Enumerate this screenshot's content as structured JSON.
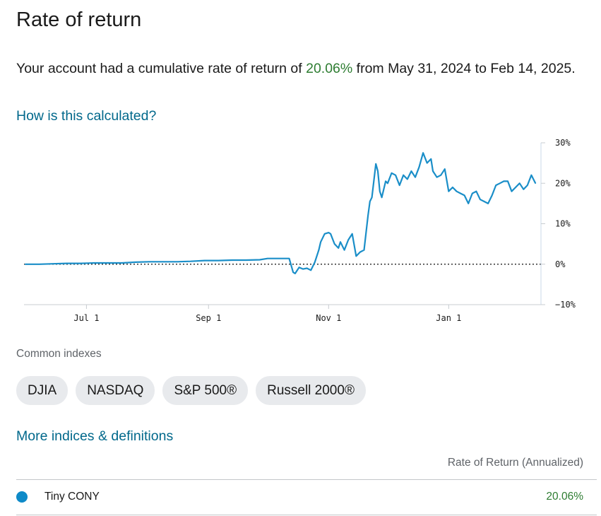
{
  "page": {
    "title": "Rate of return",
    "summary_prefix": "Your account had a cumulative rate of return of ",
    "summary_value": "20.06%",
    "summary_suffix": " from May 31, 2024 to Feb 14, 2025.",
    "how_link": "How is this calculated?"
  },
  "chart_data": {
    "type": "line",
    "xlabel": "",
    "ylabel": "",
    "x_tick_labels": [
      "Jul 1",
      "Sep 1",
      "Nov 1",
      "Jan 1"
    ],
    "x_ticks": [
      "2024-07-01",
      "2024-09-01",
      "2024-11-01",
      "2025-01-01"
    ],
    "xlim": [
      "2024-05-31",
      "2025-02-14"
    ],
    "y_tick_labels": [
      "30%",
      "20%",
      "10%",
      "0%",
      "−10%"
    ],
    "y_ticks": [
      30,
      20,
      10,
      0,
      -10
    ],
    "ylim": [
      -10,
      30
    ],
    "axis_side": "right",
    "zero_line": "dotted",
    "series": [
      {
        "color": "#1a8ec8",
        "points": [
          [
            "2024-05-31",
            0.0
          ],
          [
            "2024-06-07",
            0.0
          ],
          [
            "2024-06-14",
            0.1
          ],
          [
            "2024-06-21",
            0.2
          ],
          [
            "2024-06-28",
            0.2
          ],
          [
            "2024-07-05",
            0.3
          ],
          [
            "2024-07-12",
            0.3
          ],
          [
            "2024-07-19",
            0.3
          ],
          [
            "2024-07-26",
            0.5
          ],
          [
            "2024-08-02",
            0.6
          ],
          [
            "2024-08-09",
            0.6
          ],
          [
            "2024-08-16",
            0.6
          ],
          [
            "2024-08-23",
            0.7
          ],
          [
            "2024-08-30",
            0.9
          ],
          [
            "2024-09-06",
            0.9
          ],
          [
            "2024-09-13",
            1.0
          ],
          [
            "2024-09-20",
            1.0
          ],
          [
            "2024-09-27",
            1.1
          ],
          [
            "2024-10-01",
            1.4
          ],
          [
            "2024-10-08",
            1.4
          ],
          [
            "2024-10-12",
            1.4
          ],
          [
            "2024-10-14",
            -2.0
          ],
          [
            "2024-10-15",
            -2.3
          ],
          [
            "2024-10-17",
            -0.8
          ],
          [
            "2024-10-19",
            -1.2
          ],
          [
            "2024-10-21",
            -1.0
          ],
          [
            "2024-10-23",
            -1.5
          ],
          [
            "2024-10-25",
            0.5
          ],
          [
            "2024-10-27",
            3.5
          ],
          [
            "2024-10-28",
            5.5
          ],
          [
            "2024-10-30",
            7.5
          ],
          [
            "2024-11-01",
            7.8
          ],
          [
            "2024-11-02",
            7.5
          ],
          [
            "2024-11-04",
            5.0
          ],
          [
            "2024-11-06",
            4.0
          ],
          [
            "2024-11-07",
            5.5
          ],
          [
            "2024-11-09",
            3.5
          ],
          [
            "2024-11-11",
            6.0
          ],
          [
            "2024-11-13",
            7.5
          ],
          [
            "2024-11-15",
            2.0
          ],
          [
            "2024-11-17",
            3.0
          ],
          [
            "2024-11-19",
            3.5
          ],
          [
            "2024-11-21",
            12.0
          ],
          [
            "2024-11-22",
            15.5
          ],
          [
            "2024-11-23",
            16.5
          ],
          [
            "2024-11-25",
            24.8
          ],
          [
            "2024-11-26",
            23.0
          ],
          [
            "2024-11-27",
            18.0
          ],
          [
            "2024-11-28",
            16.5
          ],
          [
            "2024-11-30",
            20.5
          ],
          [
            "2024-12-01",
            20.0
          ],
          [
            "2024-12-03",
            22.5
          ],
          [
            "2024-12-05",
            22.0
          ],
          [
            "2024-12-07",
            19.5
          ],
          [
            "2024-12-09",
            22.0
          ],
          [
            "2024-12-11",
            21.0
          ],
          [
            "2024-12-13",
            23.0
          ],
          [
            "2024-12-15",
            21.5
          ],
          [
            "2024-12-17",
            24.0
          ],
          [
            "2024-12-19",
            27.5
          ],
          [
            "2024-12-21",
            25.0
          ],
          [
            "2024-12-23",
            26.0
          ],
          [
            "2024-12-24",
            23.0
          ],
          [
            "2024-12-26",
            21.5
          ],
          [
            "2024-12-28",
            22.0
          ],
          [
            "2024-12-30",
            23.5
          ],
          [
            "2025-01-01",
            18.0
          ],
          [
            "2025-01-03",
            19.0
          ],
          [
            "2025-01-05",
            18.0
          ],
          [
            "2025-01-07",
            17.5
          ],
          [
            "2025-01-09",
            17.0
          ],
          [
            "2025-01-11",
            15.0
          ],
          [
            "2025-01-13",
            17.5
          ],
          [
            "2025-01-15",
            18.0
          ],
          [
            "2025-01-17",
            16.0
          ],
          [
            "2025-01-19",
            15.5
          ],
          [
            "2025-01-21",
            15.0
          ],
          [
            "2025-01-23",
            17.0
          ],
          [
            "2025-01-25",
            19.5
          ],
          [
            "2025-01-27",
            20.0
          ],
          [
            "2025-01-29",
            20.5
          ],
          [
            "2025-01-31",
            20.5
          ],
          [
            "2025-02-02",
            18.0
          ],
          [
            "2025-02-04",
            19.0
          ],
          [
            "2025-02-06",
            20.0
          ],
          [
            "2025-02-08",
            18.5
          ],
          [
            "2025-02-10",
            19.5
          ],
          [
            "2025-02-12",
            22.0
          ],
          [
            "2025-02-14",
            20.06
          ]
        ]
      }
    ]
  },
  "indexes": {
    "label": "Common indexes",
    "chips": [
      "DJIA",
      "NASDAQ",
      "S&P 500®",
      "Russell 2000®"
    ]
  },
  "more_link": "More indices & definitions",
  "table": {
    "header": "Rate of Return (Annualized)",
    "rows": [
      {
        "name": "Tiny CONY",
        "value": "20.06%",
        "dot_color": "#0e8ac8"
      }
    ]
  },
  "colors": {
    "accent_green": "#2e7d32",
    "link_blue": "#00688b",
    "line_blue": "#1a8ec8"
  }
}
